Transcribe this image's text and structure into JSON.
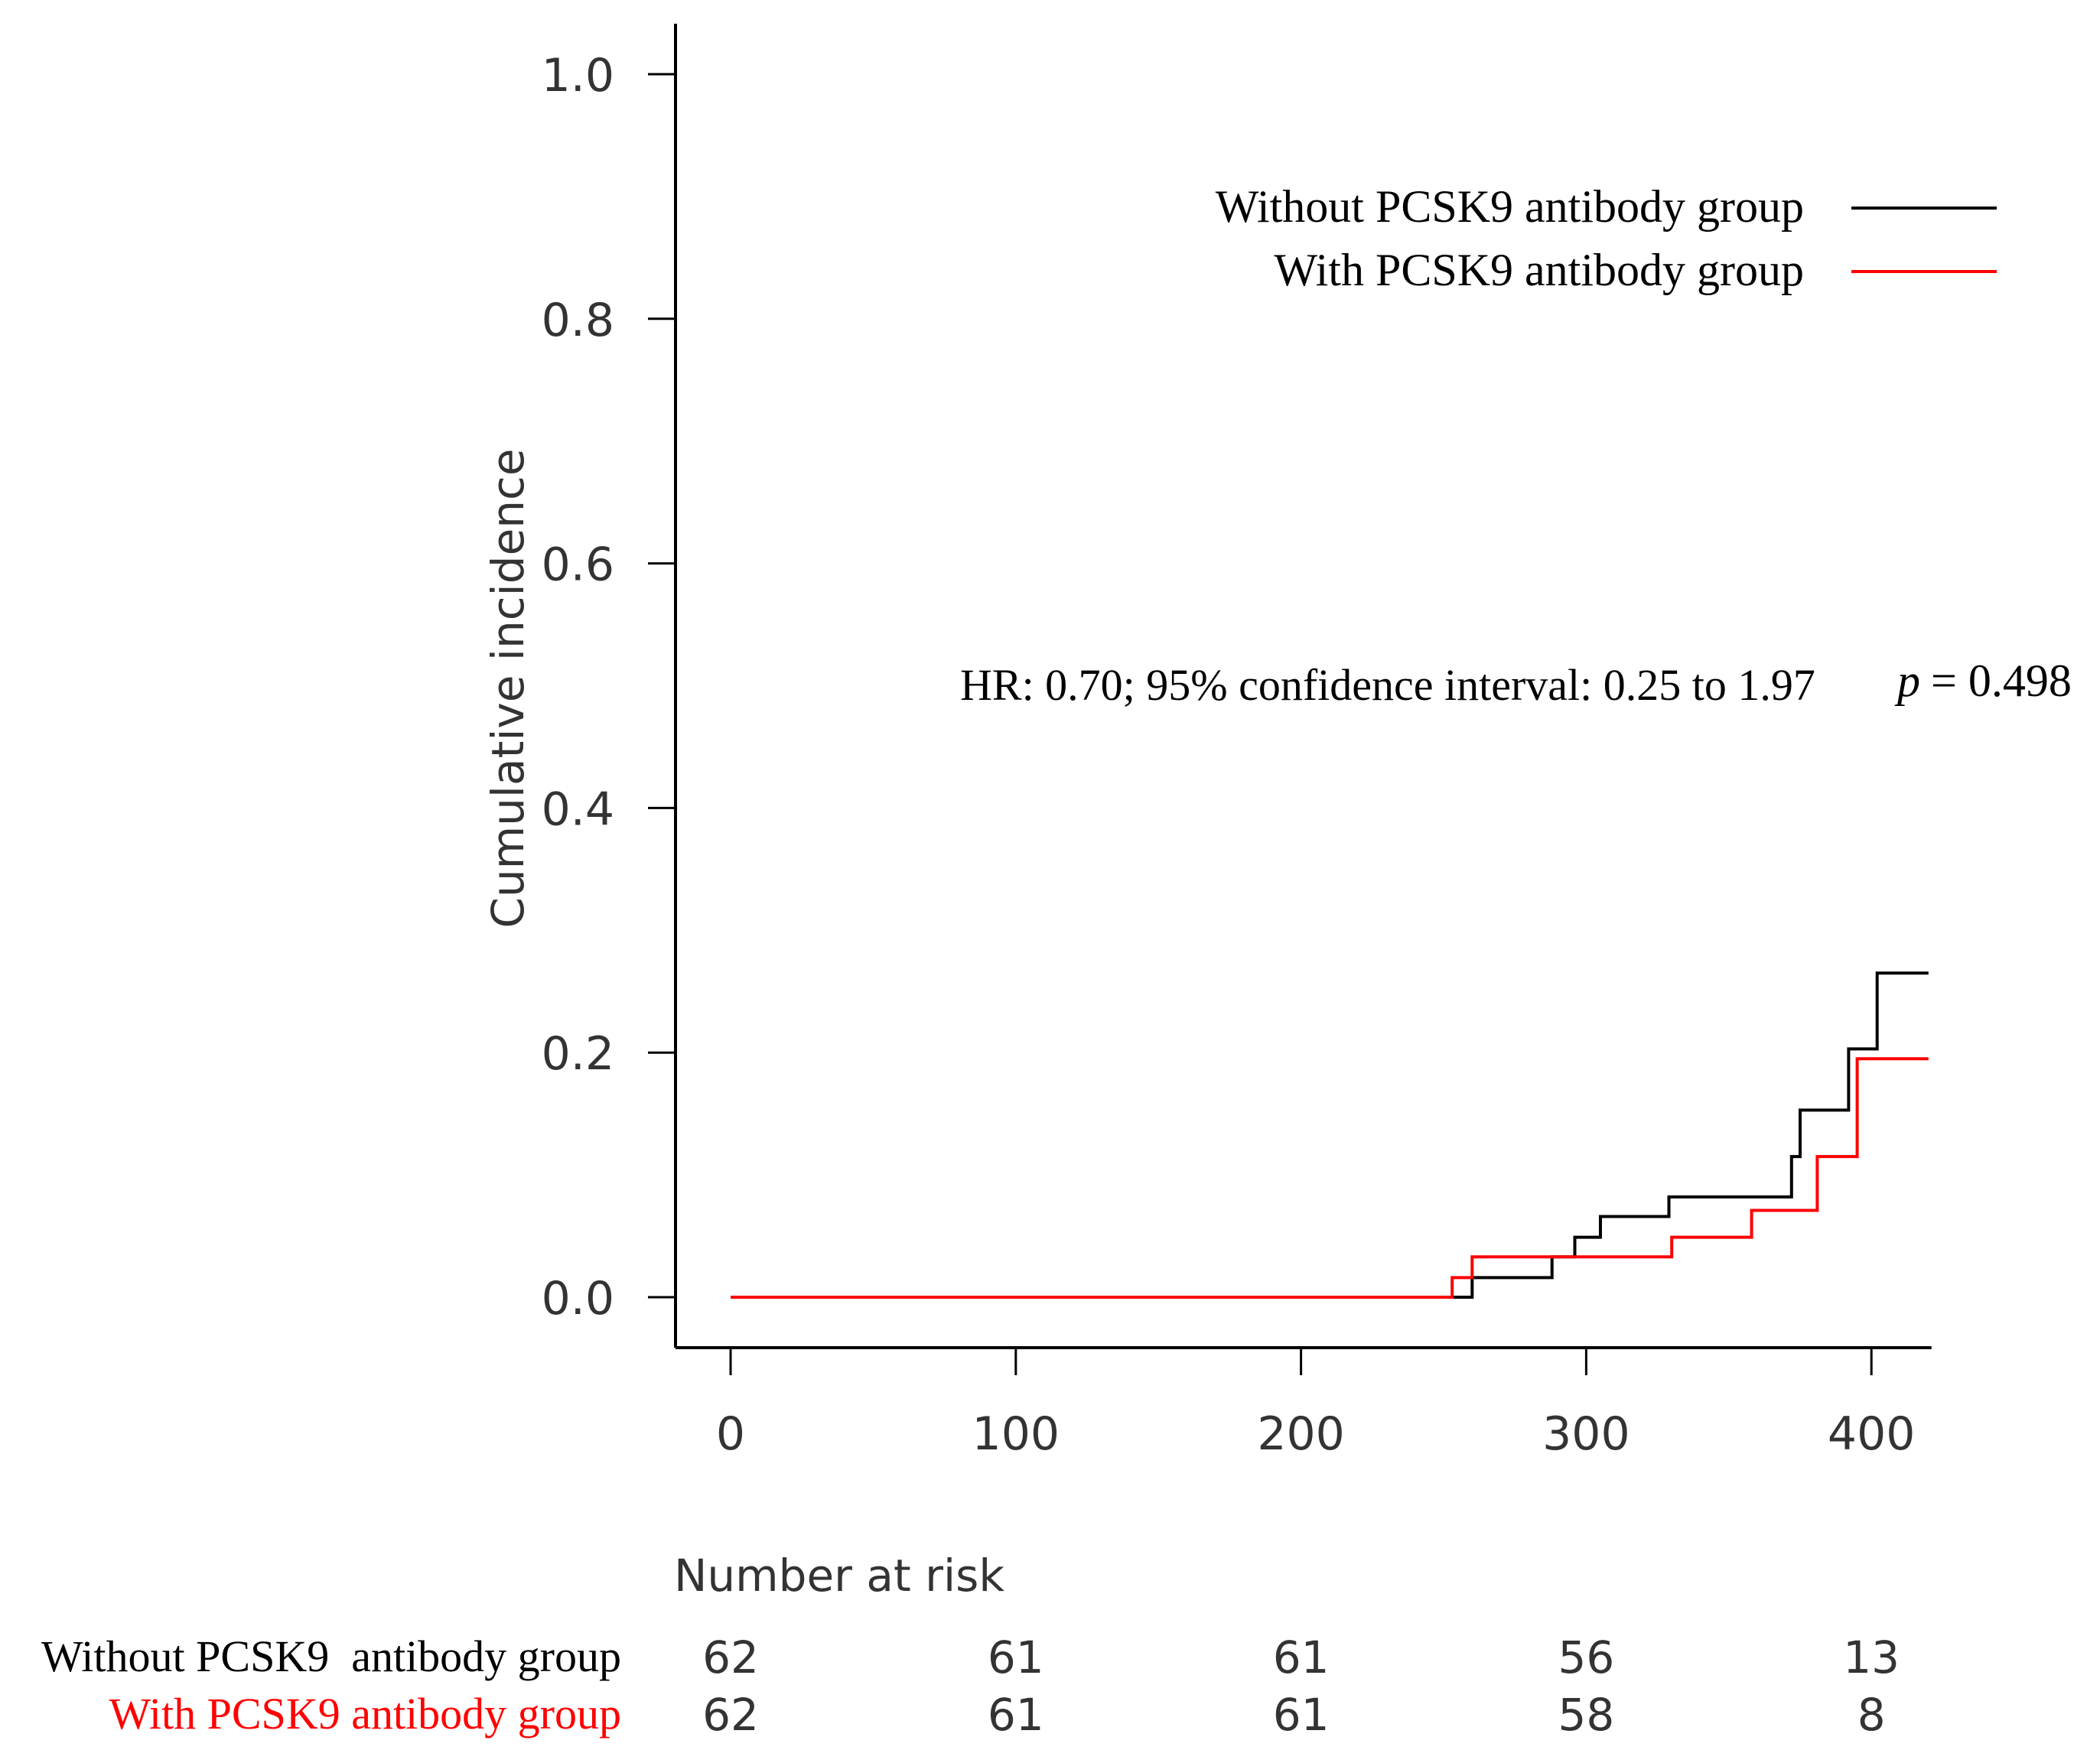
{
  "chart_data": {
    "type": "line",
    "subtype": "kaplan-meier cumulative incidence step plot",
    "ylabel": "Cumulative incidence",
    "xlabel": "",
    "xlim": [
      0,
      420
    ],
    "ylim": [
      0,
      1.0
    ],
    "x_ticks": [
      0,
      100,
      200,
      300,
      400
    ],
    "x_tick_labels": [
      "0",
      "100",
      "200",
      "300",
      "400"
    ],
    "y_ticks": [
      0.0,
      0.2,
      0.4,
      0.6,
      0.8,
      1.0
    ],
    "y_tick_labels": [
      "0.0",
      "0.2",
      "0.4",
      "0.6",
      "0.8",
      "1.0"
    ],
    "grid": false,
    "legend_position": "top-right",
    "annotation": {
      "text": "HR: 0.70; 95% confidence interval: 0.25 to 1.97",
      "p_symbol": "p",
      "p_value": "= 0.498"
    },
    "series": [
      {
        "name": "Without PCSK9 antibody group",
        "color": "#000000",
        "steps": [
          [
            0,
            0.0
          ],
          [
            260,
            0.0
          ],
          [
            260,
            0.016
          ],
          [
            288,
            0.016
          ],
          [
            288,
            0.033
          ],
          [
            296,
            0.033
          ],
          [
            296,
            0.049
          ],
          [
            305,
            0.049
          ],
          [
            305,
            0.066
          ],
          [
            329,
            0.066
          ],
          [
            329,
            0.082
          ],
          [
            372,
            0.082
          ],
          [
            372,
            0.115
          ],
          [
            375,
            0.115
          ],
          [
            375,
            0.153
          ],
          [
            392,
            0.153
          ],
          [
            392,
            0.203
          ],
          [
            402,
            0.203
          ],
          [
            402,
            0.265
          ],
          [
            420,
            0.265
          ]
        ]
      },
      {
        "name": "With PCSK9 antibody group",
        "color": "#ff0000",
        "steps": [
          [
            0,
            0.0
          ],
          [
            253,
            0.0
          ],
          [
            253,
            0.016
          ],
          [
            260,
            0.016
          ],
          [
            260,
            0.033
          ],
          [
            330,
            0.033
          ],
          [
            330,
            0.049
          ],
          [
            358,
            0.049
          ],
          [
            358,
            0.071
          ],
          [
            381,
            0.071
          ],
          [
            381,
            0.115
          ],
          [
            395,
            0.115
          ],
          [
            395,
            0.195
          ],
          [
            420,
            0.195
          ]
        ]
      }
    ],
    "risk_table": {
      "title": "Number at risk",
      "times": [
        0,
        100,
        200,
        300,
        400
      ],
      "rows": [
        {
          "label": "Without PCSK9  antibody group",
          "color": "#000000",
          "values": [
            "62",
            "61",
            "61",
            "56",
            "13"
          ]
        },
        {
          "label": "With PCSK9 antibody group",
          "color": "#ff0000",
          "values": [
            "62",
            "61",
            "61",
            "58",
            "8"
          ]
        }
      ]
    }
  }
}
